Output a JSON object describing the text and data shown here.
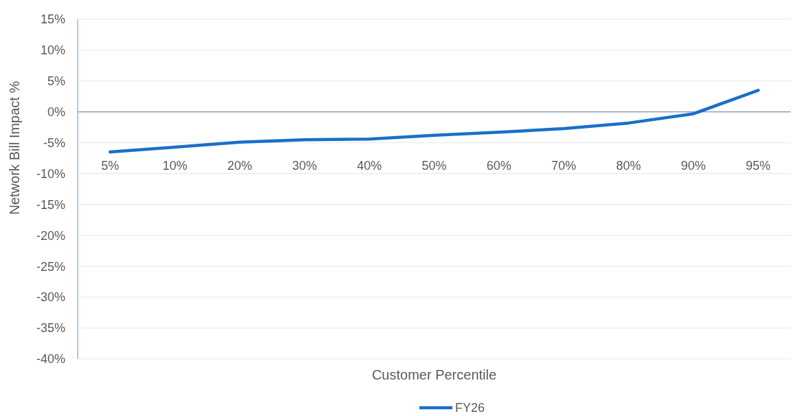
{
  "chart_data": {
    "type": "line",
    "xlabel": "Customer Percentile",
    "ylabel": "Network Bill Impact %",
    "categories": [
      "5%",
      "10%",
      "20%",
      "30%",
      "40%",
      "50%",
      "60%",
      "70%",
      "80%",
      "90%",
      "95%"
    ],
    "series": [
      {
        "name": "FY26",
        "color": "#1a6fc9",
        "values": [
          -6.5,
          -5.7,
          -4.9,
          -4.5,
          -4.4,
          -3.8,
          -3.3,
          -2.7,
          -1.8,
          -0.3,
          3.5
        ]
      }
    ],
    "ylim": [
      -40,
      15
    ],
    "yticks": [
      {
        "value": -40,
        "label": "-40%"
      },
      {
        "value": -35,
        "label": "-35%"
      },
      {
        "value": -30,
        "label": "-30%"
      },
      {
        "value": -25,
        "label": "-25%"
      },
      {
        "value": -20,
        "label": "-20%"
      },
      {
        "value": -15,
        "label": "-15%"
      },
      {
        "value": -10,
        "label": "-10%"
      },
      {
        "value": -5,
        "label": "-5%"
      },
      {
        "value": 0,
        "label": "0%"
      },
      {
        "value": 5,
        "label": "5%"
      },
      {
        "value": 10,
        "label": "10%"
      },
      {
        "value": 15,
        "label": "15%"
      }
    ],
    "ref_lines": [
      {
        "axis": "y",
        "value": 0,
        "color": "#5b7fa6",
        "line_style": "solid"
      }
    ],
    "grid": "y",
    "legend": "bottom",
    "marker": "none",
    "line_style": "solid"
  }
}
